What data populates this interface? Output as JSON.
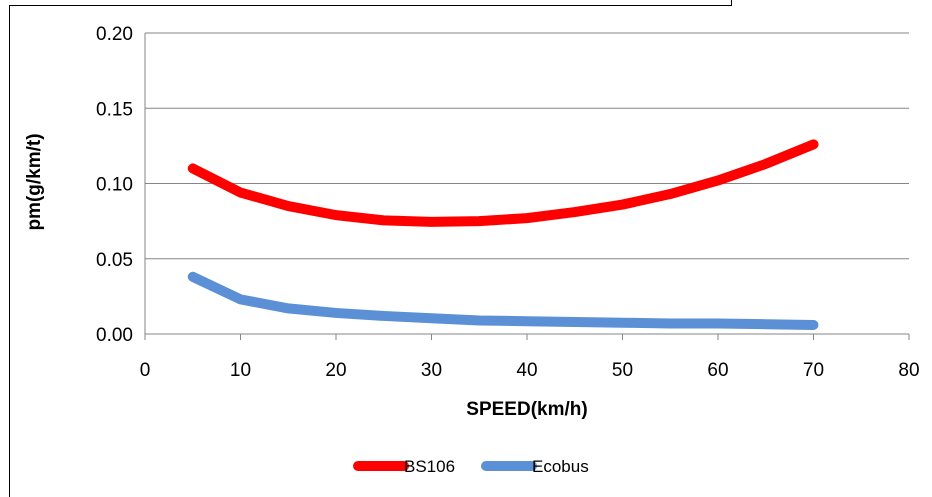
{
  "chart_data": {
    "type": "line",
    "title": "",
    "xlabel": "SPEED(km/h)",
    "ylabel": "pm(g/km/t)",
    "xlim": [
      0,
      80
    ],
    "ylim": [
      0,
      0.2
    ],
    "x_ticks": [
      "0",
      "10",
      "20",
      "30",
      "40",
      "50",
      "60",
      "70",
      "80"
    ],
    "y_ticks": [
      "0.00",
      "0.05",
      "0.10",
      "0.15",
      "0.20"
    ],
    "grid": "horizontal",
    "legend_position": "bottom",
    "x": [
      5,
      10,
      15,
      20,
      25,
      30,
      35,
      40,
      45,
      50,
      55,
      60,
      65,
      70
    ],
    "series": [
      {
        "name": "BS106",
        "color": "#ff0000",
        "values": [
          0.11,
          0.094,
          0.085,
          0.079,
          0.0755,
          0.0745,
          0.075,
          0.077,
          0.081,
          0.086,
          0.093,
          0.102,
          0.113,
          0.126
        ]
      },
      {
        "name": "Ecobus",
        "color": "#5b8fd6",
        "values": [
          0.038,
          0.023,
          0.017,
          0.014,
          0.012,
          0.0105,
          0.009,
          0.0085,
          0.008,
          0.0075,
          0.007,
          0.007,
          0.0065,
          0.006
        ]
      }
    ]
  }
}
